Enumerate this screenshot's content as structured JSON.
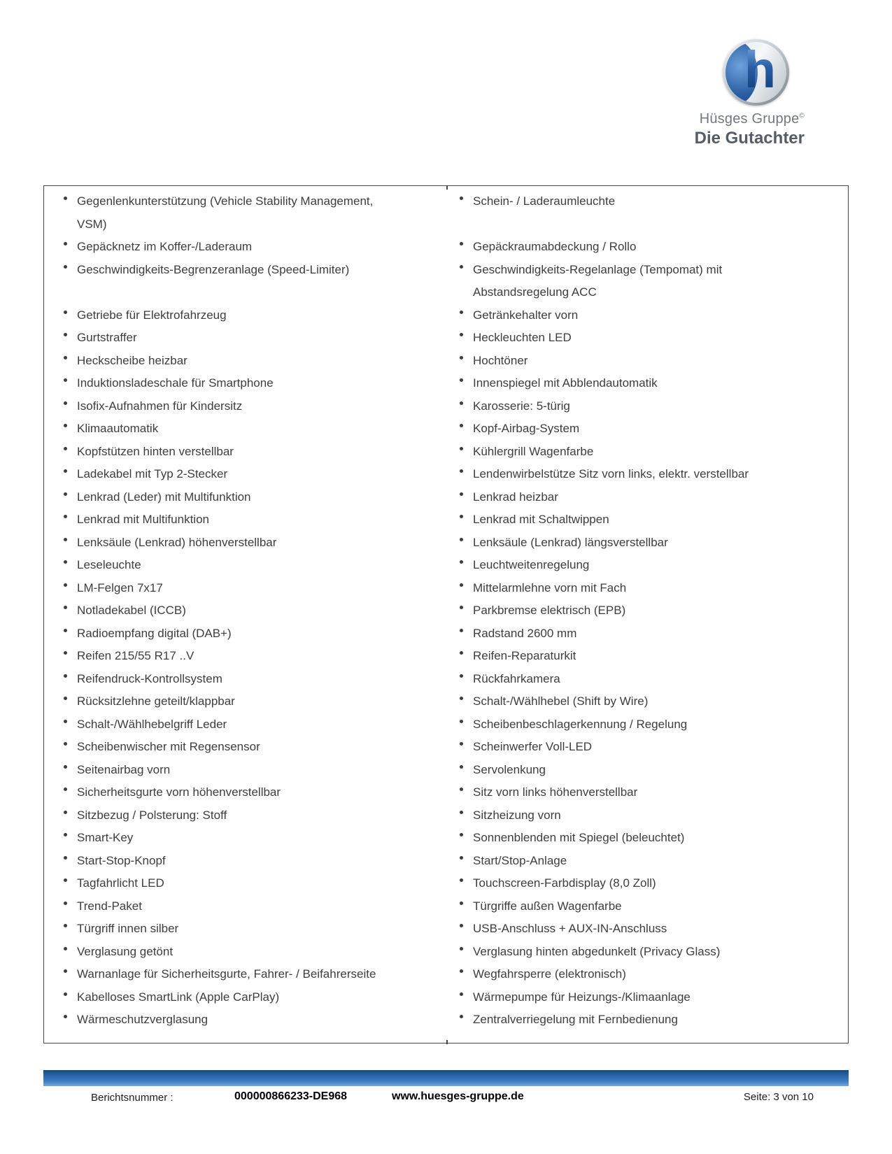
{
  "logo": {
    "letter": "h",
    "group_name": "Hüsges Gruppe",
    "copyright": "©",
    "tagline": "Die Gutachter"
  },
  "colors": {
    "footer_bar_blue": "#2a66a8",
    "logo_blue": "#2a5ea3",
    "text_gray": "#3e3e3e"
  },
  "equipment_rows": [
    {
      "left": "Gegenlenkunterstützung (Vehicle Stability Management,\nVSM)",
      "right": "Schein- / Laderaumleuchte"
    },
    {
      "left": "Gepäcknetz im Koffer-/Laderaum",
      "right": "Gepäckraumabdeckung / Rollo"
    },
    {
      "left": "Geschwindigkeits-Begrenzeranlage (Speed-Limiter)",
      "right": "Geschwindigkeits-Regelanlage (Tempomat) mit\nAbstandsregelung ACC"
    },
    {
      "left": "Getriebe für Elektrofahrzeug",
      "right": "Getränkehalter vorn"
    },
    {
      "left": "Gurtstraffer",
      "right": "Heckleuchten LED"
    },
    {
      "left": "Heckscheibe heizbar",
      "right": "Hochtöner"
    },
    {
      "left": "Induktionsladeschale für Smartphone",
      "right": "Innenspiegel mit Abblendautomatik"
    },
    {
      "left": "Isofix-Aufnahmen für Kindersitz",
      "right": "Karosserie: 5-türig"
    },
    {
      "left": "Klimaautomatik",
      "right": "Kopf-Airbag-System"
    },
    {
      "left": "Kopfstützen hinten verstellbar",
      "right": "Kühlergrill Wagenfarbe"
    },
    {
      "left": "Ladekabel mit Typ 2-Stecker",
      "right": "Lendenwirbelstütze Sitz vorn links, elektr. verstellbar"
    },
    {
      "left": "Lenkrad (Leder) mit Multifunktion",
      "right": "Lenkrad heizbar"
    },
    {
      "left": "Lenkrad mit Multifunktion",
      "right": "Lenkrad mit Schaltwippen"
    },
    {
      "left": "Lenksäule (Lenkrad) höhenverstellbar",
      "right": "Lenksäule (Lenkrad) längsverstellbar"
    },
    {
      "left": "Leseleuchte",
      "right": "Leuchtweitenregelung"
    },
    {
      "left": "LM-Felgen 7x17",
      "right": "Mittelarmlehne vorn mit Fach"
    },
    {
      "left": "Notladekabel (ICCB)",
      "right": "Parkbremse elektrisch (EPB)"
    },
    {
      "left": "Radioempfang digital (DAB+)",
      "right": "Radstand 2600 mm"
    },
    {
      "left": "Reifen 215/55 R17 ..V",
      "right": "Reifen-Reparaturkit"
    },
    {
      "left": "Reifendruck-Kontrollsystem",
      "right": "Rückfahrkamera"
    },
    {
      "left": "Rücksitzlehne geteilt/klappbar",
      "right": "Schalt-/Wählhebel (Shift by Wire)"
    },
    {
      "left": "Schalt-/Wählhebelgriff Leder",
      "right": "Scheibenbeschlagerkennung / Regelung"
    },
    {
      "left": "Scheibenwischer mit Regensensor",
      "right": "Scheinwerfer Voll-LED"
    },
    {
      "left": "Seitenairbag vorn",
      "right": "Servolenkung"
    },
    {
      "left": "Sicherheitsgurte vorn höhenverstellbar",
      "right": "Sitz vorn links höhenverstellbar"
    },
    {
      "left": "Sitzbezug / Polsterung: Stoff",
      "right": "Sitzheizung vorn"
    },
    {
      "left": "Smart-Key",
      "right": "Sonnenblenden mit Spiegel (beleuchtet)"
    },
    {
      "left": "Start-Stop-Knopf",
      "right": "Start/Stop-Anlage"
    },
    {
      "left": "Tagfahrlicht LED",
      "right": "Touchscreen-Farbdisplay (8,0 Zoll)"
    },
    {
      "left": "Trend-Paket",
      "right": "Türgriffe außen Wagenfarbe"
    },
    {
      "left": "Türgriff innen silber",
      "right": "USB-Anschluss + AUX-IN-Anschluss"
    },
    {
      "left": "Verglasung getönt",
      "right": "Verglasung hinten abgedunkelt (Privacy Glass)"
    },
    {
      "left": "Warnanlage für Sicherheitsgurte, Fahrer- / Beifahrerseite",
      "right": "Wegfahrsperre (elektronisch)"
    },
    {
      "left": "Kabelloses SmartLink (Apple CarPlay)",
      "right": "Wärmepumpe für Heizungs-/Klimaanlage"
    },
    {
      "left": "Wärmeschutzverglasung",
      "right": "Zentralverriegelung mit Fernbedienung"
    }
  ],
  "footer": {
    "report_label": "Berichtsnummer :",
    "report_number": "000000866233-DE968",
    "website": "www.huesges-gruppe.de",
    "page_info": "Seite: 3 von 10"
  }
}
